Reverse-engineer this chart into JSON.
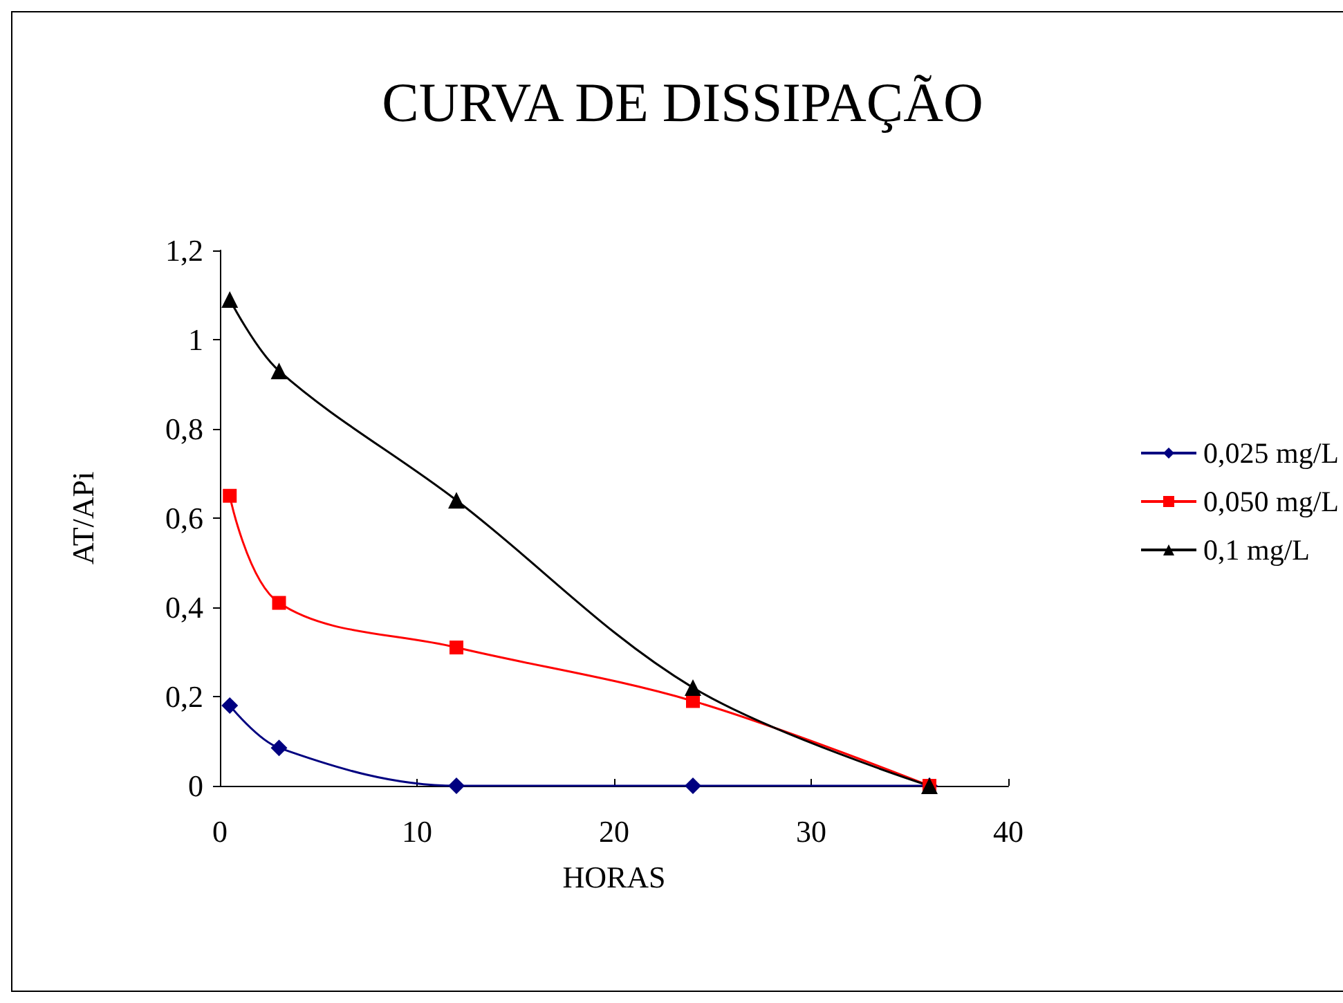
{
  "chart_data": {
    "type": "line",
    "title": "CURVA DE DISSIPAÇÃO",
    "xlabel": "HORAS",
    "ylabel": "AT/APi",
    "x": [
      0.5,
      3,
      12,
      24,
      36
    ],
    "series": [
      {
        "name": "0,025 mg/L",
        "color": "#000080",
        "marker": "diamond",
        "values": [
          0.18,
          0.085,
          0,
          0,
          0
        ]
      },
      {
        "name": "0,050 mg/L",
        "color": "#ff0000",
        "marker": "square",
        "values": [
          0.65,
          0.41,
          0.31,
          0.19,
          0
        ]
      },
      {
        "name": "0,1 mg/L",
        "color": "#000000",
        "marker": "triangle",
        "values": [
          1.09,
          0.93,
          0.64,
          0.22,
          0
        ]
      }
    ],
    "xlim": [
      0,
      40
    ],
    "xticks": [
      0,
      10,
      20,
      30,
      40
    ],
    "ylim": [
      0,
      1.2
    ],
    "yticks": [
      0,
      {
        "value": 0.2,
        "label": "0,2"
      },
      {
        "value": 0.4,
        "label": "0,4"
      },
      {
        "value": 0.6,
        "label": "0,6"
      },
      {
        "value": 0.8,
        "label": "0,8"
      },
      1,
      {
        "value": 1.2,
        "label": "1,2"
      }
    ],
    "grid": false,
    "legend": "right",
    "line_style": "solid"
  }
}
